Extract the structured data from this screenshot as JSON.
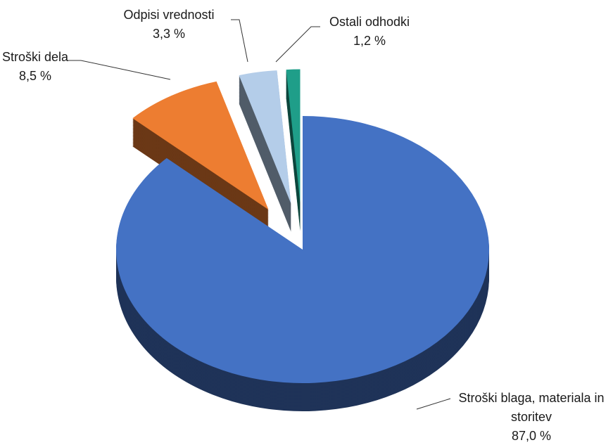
{
  "chart_data": {
    "type": "pie3d",
    "categories": [
      "Stroški blaga, materiala in storitev",
      "Stroški dela",
      "Odpisi vrednosti",
      "Ostali odhodki"
    ],
    "values": [
      87.0,
      8.5,
      3.3,
      1.2
    ],
    "value_labels": [
      "87,0 %",
      "8,5 %",
      "3,3 %",
      "1,2 %"
    ],
    "colors": [
      "#4472c4",
      "#ed7d31",
      "#b4cde9",
      "#1f9e89"
    ]
  }
}
